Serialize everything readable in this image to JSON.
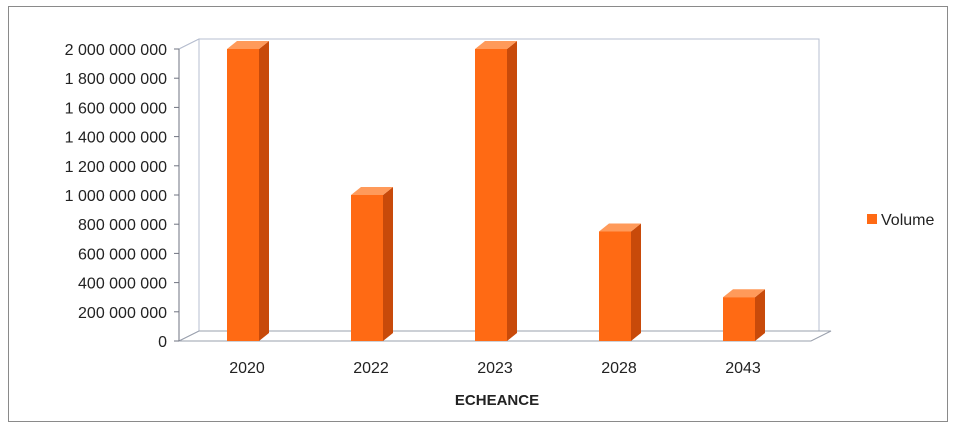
{
  "chart_data": {
    "type": "bar",
    "style": "3d-column",
    "categories": [
      "2020",
      "2022",
      "2023",
      "2028",
      "2043"
    ],
    "series": [
      {
        "name": "Volume",
        "values": [
          2000000000,
          1000000000,
          2000000000,
          750000000,
          300000000
        ]
      }
    ],
    "ylim": [
      0,
      2000000000
    ],
    "yticks": [
      0,
      200000000,
      400000000,
      600000000,
      800000000,
      1000000000,
      1200000000,
      1400000000,
      1600000000,
      1800000000,
      2000000000
    ],
    "ytick_labels": [
      "0",
      "200 000 000",
      "400 000 000",
      "600 000 000",
      "800 000 000",
      "1 000 000 000",
      "1 200 000 000",
      "1 400 000 000",
      "1 600 000 000",
      "1 800 000 000",
      "2 000 000 000"
    ],
    "xlabel": "ECHEANCE",
    "ylabel": "",
    "title": "",
    "grid": true,
    "legend": "right",
    "colors": {
      "bar_front": "#ff6a14",
      "bar_side": "#c84a0a",
      "bar_top": "#ff9a5a",
      "grid": "#9aa6bd"
    }
  }
}
